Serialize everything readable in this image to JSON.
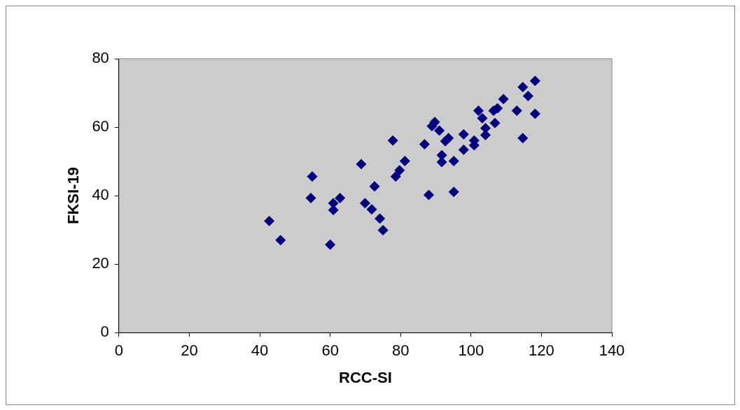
{
  "chart_data": {
    "type": "scatter",
    "xlabel": "RCC-SI",
    "ylabel": "FKSI-19",
    "xlim": [
      0,
      140
    ],
    "xticks": [
      0,
      20,
      40,
      60,
      80,
      100,
      120,
      140
    ],
    "ylim": [
      0,
      80
    ],
    "yticks": [
      0,
      20,
      40,
      60,
      80
    ],
    "grid": false,
    "legend": false,
    "marker": "diamond",
    "series": [
      {
        "color": "#000080",
        "x": [
          42.7,
          45.9,
          54.5,
          54.9,
          60.0,
          60.9,
          62.8,
          60.9,
          69.9,
          71.8,
          74.1,
          75.0,
          72.6,
          68.8,
          77.8,
          81.2,
          79.7,
          78.6,
          86.8,
          88.0,
          88.9,
          89.7,
          91.0,
          91.7,
          91.7,
          92.7,
          93.6,
          95.1,
          95.1,
          97.9,
          97.9,
          100.9,
          100.9,
          104.1,
          104.1,
          103.2,
          102.1,
          106.8,
          106.4,
          107.5,
          109.2,
          113.0,
          114.7,
          114.7,
          116.2,
          118.2,
          118.2
        ],
        "values": [
          32.6,
          27.0,
          39.3,
          45.6,
          25.7,
          37.8,
          39.3,
          35.8,
          37.8,
          36.0,
          33.3,
          29.9,
          42.7,
          49.2,
          56.1,
          50.1,
          47.4,
          45.6,
          55.0,
          40.2,
          60.3,
          61.5,
          59.0,
          51.8,
          49.8,
          55.9,
          56.8,
          50.1,
          41.1,
          57.9,
          53.4,
          56.1,
          54.7,
          59.7,
          57.7,
          62.6,
          64.8,
          61.2,
          64.8,
          65.5,
          68.2,
          64.8,
          71.7,
          56.8,
          69.1,
          73.5,
          63.9
        ]
      }
    ]
  }
}
